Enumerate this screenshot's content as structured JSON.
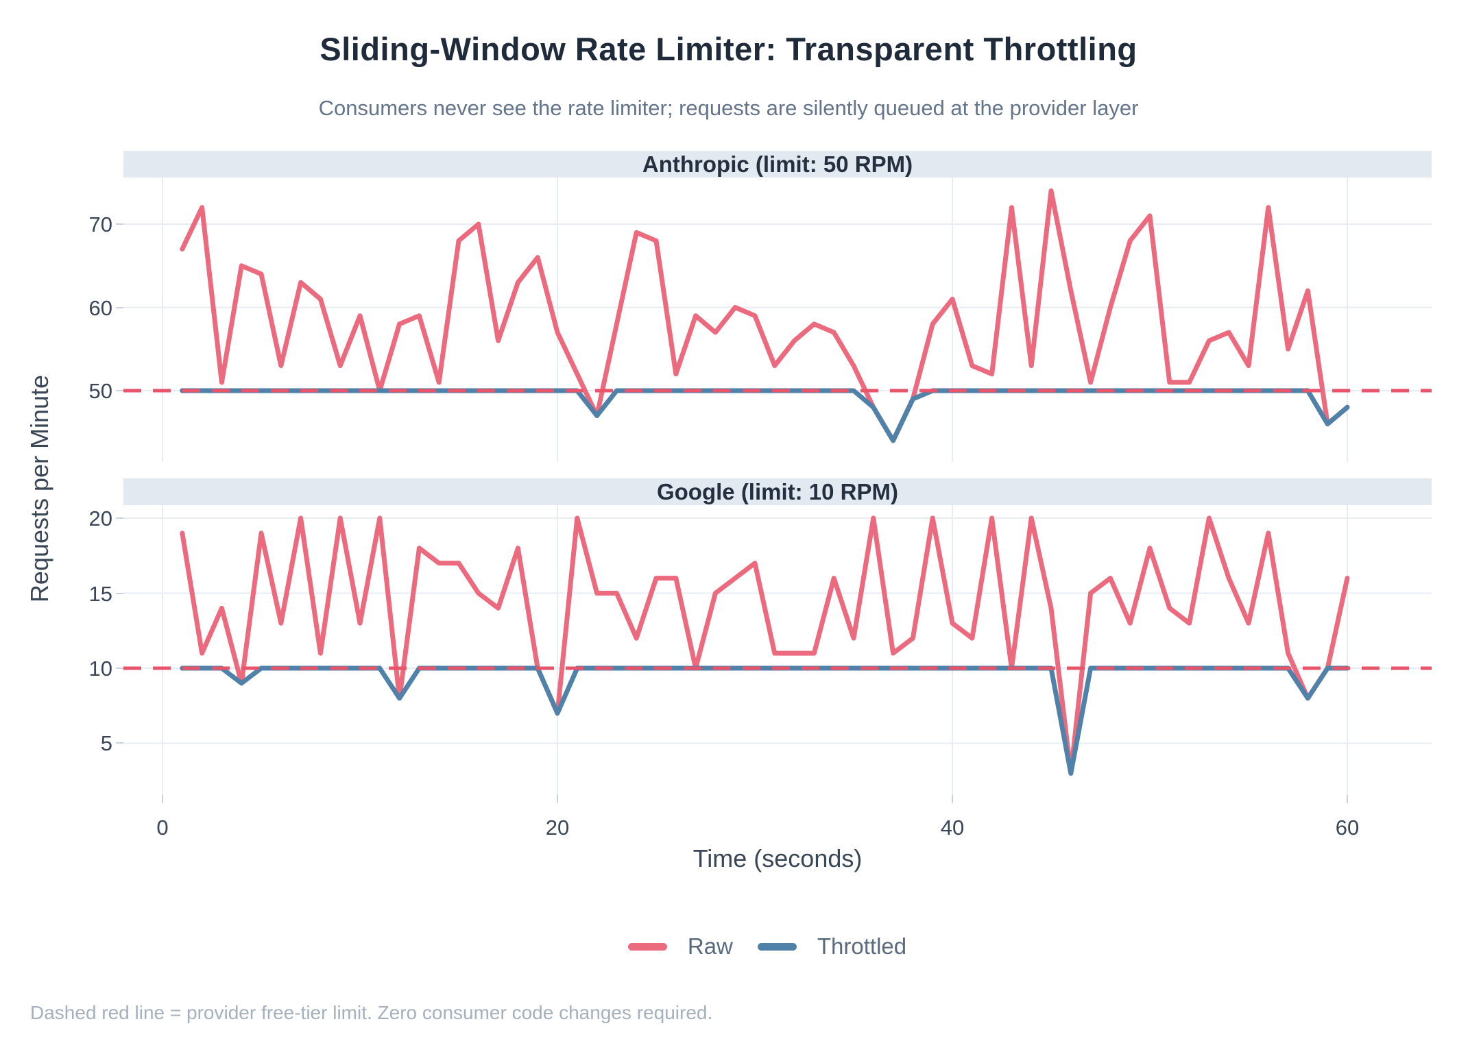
{
  "title": "Sliding-Window Rate Limiter: Transparent Throttling",
  "subtitle": "Consumers never see the rate limiter; requests are silently queued at the provider layer",
  "caption": "Dashed red line = provider free-tier limit. Zero consumer code changes required.",
  "x_axis": {
    "label": "Time (seconds)",
    "ticks": [
      0,
      20,
      40,
      60
    ],
    "xlim": [
      -1.98,
      64.27
    ]
  },
  "y_axis": {
    "label": "Requests per Minute"
  },
  "legend": {
    "items": [
      {
        "label": "Raw",
        "color": "#ec6a7d"
      },
      {
        "label": "Throttled",
        "color": "#5081a9"
      }
    ]
  },
  "colors": {
    "raw": "#ec6a7d",
    "throttled": "#5081a9",
    "limit_dashed": "#e8556a",
    "gridline": "#e7ecf3",
    "strip_bg": "#e3e9f1",
    "tick": "#c9d2dd"
  },
  "chart_data": [
    {
      "type": "line",
      "facet": "Anthropic (limit: 50 RPM)",
      "limit": 50,
      "yticks": [
        50,
        60,
        70
      ],
      "ylim": [
        41.44,
        75.6
      ],
      "x_range": [
        1,
        60
      ],
      "x_step": 1,
      "series": [
        {
          "name": "Raw",
          "values": [
            67,
            72,
            51,
            65,
            64,
            53,
            63,
            61,
            53,
            59,
            50,
            58,
            59,
            51,
            68,
            70,
            56,
            63,
            66,
            57,
            52,
            47,
            58,
            69,
            68,
            52,
            59,
            57,
            60,
            59,
            53,
            56,
            58,
            57,
            53,
            48,
            44,
            49,
            58,
            61,
            53,
            52,
            72,
            53,
            74,
            62,
            51,
            60,
            68,
            71,
            51,
            51,
            56,
            57,
            53,
            72,
            55,
            62,
            46,
            48
          ]
        },
        {
          "name": "Throttled",
          "values": [
            50,
            50,
            50,
            50,
            50,
            50,
            50,
            50,
            50,
            50,
            50,
            50,
            50,
            50,
            50,
            50,
            50,
            50,
            50,
            50,
            50,
            47,
            50,
            50,
            50,
            50,
            50,
            50,
            50,
            50,
            50,
            50,
            50,
            50,
            50,
            48,
            44,
            49,
            50,
            50,
            50,
            50,
            50,
            50,
            50,
            50,
            50,
            50,
            50,
            50,
            50,
            50,
            50,
            50,
            50,
            50,
            50,
            50,
            46,
            48
          ]
        }
      ]
    },
    {
      "type": "line",
      "facet": "Google (limit: 10 RPM)",
      "limit": 10,
      "yticks": [
        5,
        10,
        15,
        20
      ],
      "ylim": [
        1.55,
        20.87
      ],
      "x_range": [
        1,
        60
      ],
      "x_step": 1,
      "series": [
        {
          "name": "Raw",
          "values": [
            19,
            11,
            14,
            9,
            19,
            13,
            20,
            11,
            20,
            13,
            20,
            8,
            18,
            17,
            17,
            15,
            14,
            18,
            10,
            7,
            20,
            15,
            15,
            12,
            16,
            16,
            10,
            15,
            16,
            17,
            11,
            11,
            11,
            16,
            12,
            20,
            11,
            12,
            20,
            13,
            12,
            20,
            10,
            20,
            14,
            3,
            15,
            16,
            13,
            18,
            14,
            13,
            20,
            16,
            13,
            19,
            11,
            8,
            10,
            16
          ]
        },
        {
          "name": "Throttled",
          "values": [
            10,
            10,
            10,
            9,
            10,
            10,
            10,
            10,
            10,
            10,
            10,
            8,
            10,
            10,
            10,
            10,
            10,
            10,
            10,
            7,
            10,
            10,
            10,
            10,
            10,
            10,
            10,
            10,
            10,
            10,
            10,
            10,
            10,
            10,
            10,
            10,
            10,
            10,
            10,
            10,
            10,
            10,
            10,
            10,
            10,
            3,
            10,
            10,
            10,
            10,
            10,
            10,
            10,
            10,
            10,
            10,
            10,
            8,
            10,
            10
          ]
        }
      ]
    }
  ]
}
